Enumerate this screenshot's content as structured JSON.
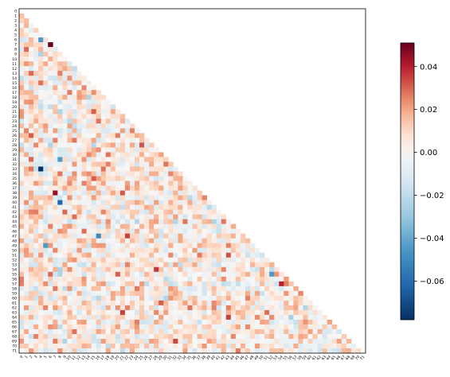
{
  "chart_data": {
    "type": "heatmap",
    "title": "",
    "xlabel": "",
    "ylabel": "",
    "shape": "lower-triangular",
    "size": 72,
    "row_labels": [
      "0",
      "1",
      "2",
      "3",
      "4",
      "5",
      "6",
      "7",
      "8",
      "9",
      "10",
      "11",
      "12",
      "13",
      "14",
      "15",
      "16",
      "17",
      "18",
      "19",
      "20",
      "21",
      "22",
      "23",
      "24",
      "25",
      "26",
      "27",
      "28",
      "29",
      "30",
      "31",
      "32",
      "33",
      "34",
      "35",
      "36",
      "37",
      "38",
      "39",
      "40",
      "41",
      "42",
      "43",
      "44",
      "45",
      "46",
      "47",
      "48",
      "49",
      "50",
      "51",
      "52",
      "53",
      "54",
      "55",
      "56",
      "57",
      "58",
      "59",
      "60",
      "61",
      "62",
      "63",
      "64",
      "65",
      "66",
      "67",
      "68",
      "69",
      "70",
      "71"
    ],
    "col_labels": [
      "0",
      "1",
      "2",
      "3",
      "4",
      "5",
      "6",
      "7",
      "8",
      "9",
      "10",
      "11",
      "12",
      "13",
      "14",
      "15",
      "16",
      "17",
      "18",
      "19",
      "20",
      "21",
      "22",
      "23",
      "24",
      "25",
      "26",
      "27",
      "28",
      "29",
      "30",
      "31",
      "32",
      "33",
      "34",
      "35",
      "36",
      "37",
      "38",
      "39",
      "40",
      "41",
      "42",
      "43",
      "44",
      "45",
      "46",
      "47",
      "48",
      "49",
      "50",
      "51",
      "52",
      "53",
      "54",
      "55",
      "56",
      "57",
      "58",
      "59",
      "60",
      "61",
      "62",
      "63",
      "64",
      "65",
      "66",
      "67",
      "68",
      "69",
      "70",
      "71"
    ],
    "value_range": [
      -0.078,
      0.051
    ],
    "colormap": "RdBu_r",
    "colormap_stops": [
      "#053061",
      "#2166ac",
      "#4393c3",
      "#92c5de",
      "#d1e5f0",
      "#f7f7f7",
      "#fddbc7",
      "#f4a582",
      "#d6604d",
      "#b2182b",
      "#67001f"
    ],
    "notable_cells": [
      {
        "row": 7,
        "col": 6,
        "value": 0.051
      },
      {
        "row": 6,
        "col": 4,
        "value": -0.045
      },
      {
        "row": 33,
        "col": 4,
        "value": -0.078
      },
      {
        "row": 38,
        "col": 7,
        "value": 0.045
      },
      {
        "row": 40,
        "col": 8,
        "value": -0.062
      },
      {
        "row": 31,
        "col": 8,
        "value": -0.045
      },
      {
        "row": 49,
        "col": 5,
        "value": -0.045
      },
      {
        "row": 47,
        "col": 16,
        "value": -0.05
      },
      {
        "row": 55,
        "col": 52,
        "value": -0.045
      },
      {
        "row": 57,
        "col": 54,
        "value": 0.04
      },
      {
        "row": 47,
        "col": 22,
        "value": 0.035
      }
    ],
    "colorbar": {
      "ticks": [
        0.04,
        0.02,
        0.0,
        -0.02,
        -0.04,
        -0.06
      ],
      "tick_labels": [
        "0.04",
        "0.02",
        "0.00",
        "−0.02",
        "−0.04",
        "−0.06"
      ]
    }
  }
}
